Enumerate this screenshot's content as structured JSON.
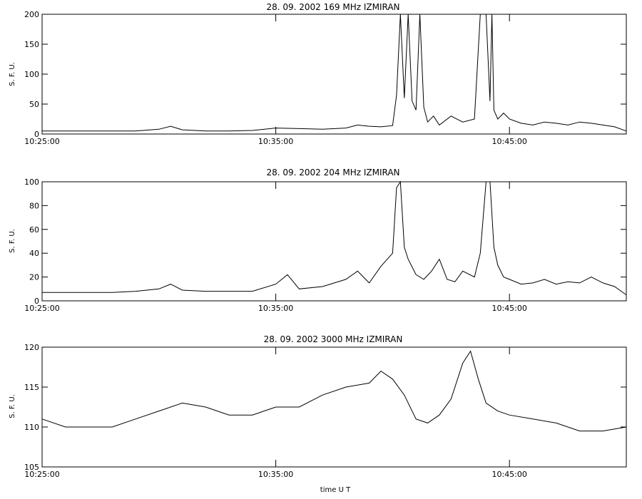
{
  "chart_data": [
    {
      "type": "line",
      "title": "28.  09.  2002    169 MHz     IZMIRAN",
      "ylabel": "S. F. U.",
      "xlabel": "",
      "xlim": [
        "10:25:00",
        "10:50:00"
      ],
      "ylim": [
        0,
        200
      ],
      "x_ticks": [
        "10:25:00",
        "10:35:00",
        "10:45:00"
      ],
      "y_ticks": [
        "0",
        "50",
        "100",
        "150",
        "200"
      ],
      "grid": false,
      "series": [
        {
          "x": [
            "10:25:00",
            "10:26:00",
            "10:27:00",
            "10:28:00",
            "10:29:00",
            "10:30:00",
            "10:30:30",
            "10:31:00",
            "10:32:00",
            "10:33:00",
            "10:34:00",
            "10:35:00",
            "10:36:00",
            "10:37:00",
            "10:38:00",
            "10:38:30",
            "10:39:00",
            "10:39:30",
            "10:40:00",
            "10:40:10",
            "10:40:20",
            "10:40:30",
            "10:40:40",
            "10:40:50",
            "10:41:00",
            "10:41:10",
            "10:41:20",
            "10:41:30",
            "10:41:45",
            "10:42:00",
            "10:42:30",
            "10:43:00",
            "10:43:30",
            "10:43:45",
            "10:44:00",
            "10:44:10",
            "10:44:15",
            "10:44:20",
            "10:44:30",
            "10:44:45",
            "10:45:00",
            "10:45:30",
            "10:46:00",
            "10:46:30",
            "10:47:00",
            "10:47:30",
            "10:48:00",
            "10:48:30",
            "10:49:00",
            "10:49:30",
            "10:50:00"
          ],
          "y": [
            5,
            5,
            5,
            5,
            5,
            8,
            13,
            7,
            5,
            5,
            6,
            10,
            9,
            8,
            10,
            15,
            13,
            12,
            14,
            65,
            200,
            60,
            200,
            55,
            40,
            200,
            45,
            20,
            30,
            15,
            30,
            20,
            25,
            200,
            200,
            55,
            200,
            40,
            25,
            35,
            25,
            18,
            15,
            20,
            18,
            15,
            20,
            18,
            15,
            12,
            5
          ]
        }
      ]
    },
    {
      "type": "line",
      "title": "28.  09.  2002    204 MHz     IZMIRAN",
      "ylabel": "S. F. U.",
      "xlabel": "",
      "xlim": [
        "10:25:00",
        "10:50:00"
      ],
      "ylim": [
        0,
        100
      ],
      "x_ticks": [
        "10:25:00",
        "10:35:00",
        "10:45:00"
      ],
      "y_ticks": [
        "0",
        "20",
        "40",
        "60",
        "80",
        "100"
      ],
      "grid": false,
      "series": [
        {
          "x": [
            "10:25:00",
            "10:26:00",
            "10:27:00",
            "10:28:00",
            "10:29:00",
            "10:30:00",
            "10:30:30",
            "10:31:00",
            "10:32:00",
            "10:33:00",
            "10:34:00",
            "10:35:00",
            "10:35:30",
            "10:36:00",
            "10:37:00",
            "10:38:00",
            "10:38:30",
            "10:39:00",
            "10:39:30",
            "10:40:00",
            "10:40:10",
            "10:40:20",
            "10:40:30",
            "10:40:40",
            "10:41:00",
            "10:41:20",
            "10:41:40",
            "10:42:00",
            "10:42:20",
            "10:42:40",
            "10:43:00",
            "10:43:30",
            "10:43:45",
            "10:44:00",
            "10:44:10",
            "10:44:20",
            "10:44:30",
            "10:44:45",
            "10:45:00",
            "10:45:30",
            "10:46:00",
            "10:46:30",
            "10:47:00",
            "10:47:30",
            "10:48:00",
            "10:48:30",
            "10:49:00",
            "10:49:30",
            "10:50:00"
          ],
          "y": [
            7,
            7,
            7,
            7,
            8,
            10,
            14,
            9,
            8,
            8,
            8,
            14,
            22,
            10,
            12,
            18,
            25,
            15,
            29,
            40,
            95,
            100,
            45,
            35,
            22,
            18,
            25,
            35,
            18,
            16,
            25,
            20,
            40,
            100,
            100,
            45,
            30,
            20,
            18,
            14,
            15,
            18,
            14,
            16,
            15,
            20,
            15,
            12,
            5
          ]
        }
      ]
    },
    {
      "type": "line",
      "title": "28.  09.  2002    3000 MHz     IZMIRAN",
      "ylabel": "S. F. U.",
      "xlabel": "time  U T",
      "xlim": [
        "10:25:00",
        "10:50:00"
      ],
      "ylim": [
        105,
        120
      ],
      "x_ticks": [
        "10:25:00",
        "10:35:00",
        "10:45:00"
      ],
      "y_ticks": [
        "105",
        "110",
        "115",
        "120"
      ],
      "grid": false,
      "series": [
        {
          "x": [
            "10:25:00",
            "10:26:00",
            "10:27:00",
            "10:28:00",
            "10:29:00",
            "10:30:00",
            "10:31:00",
            "10:32:00",
            "10:33:00",
            "10:34:00",
            "10:35:00",
            "10:36:00",
            "10:37:00",
            "10:38:00",
            "10:39:00",
            "10:39:30",
            "10:40:00",
            "10:40:30",
            "10:41:00",
            "10:41:30",
            "10:42:00",
            "10:42:30",
            "10:43:00",
            "10:43:20",
            "10:43:40",
            "10:44:00",
            "10:44:30",
            "10:45:00",
            "10:46:00",
            "10:47:00",
            "10:48:00",
            "10:49:00",
            "10:50:00"
          ],
          "y": [
            111,
            110,
            110,
            110,
            111,
            112,
            113,
            112.5,
            111.5,
            111.5,
            112.5,
            112.5,
            114,
            115,
            115.5,
            117,
            116,
            114,
            111,
            110.5,
            111.5,
            113.5,
            118,
            119.5,
            116,
            113,
            112,
            111.5,
            111,
            110.5,
            109.5,
            109.5,
            110
          ]
        }
      ]
    }
  ]
}
